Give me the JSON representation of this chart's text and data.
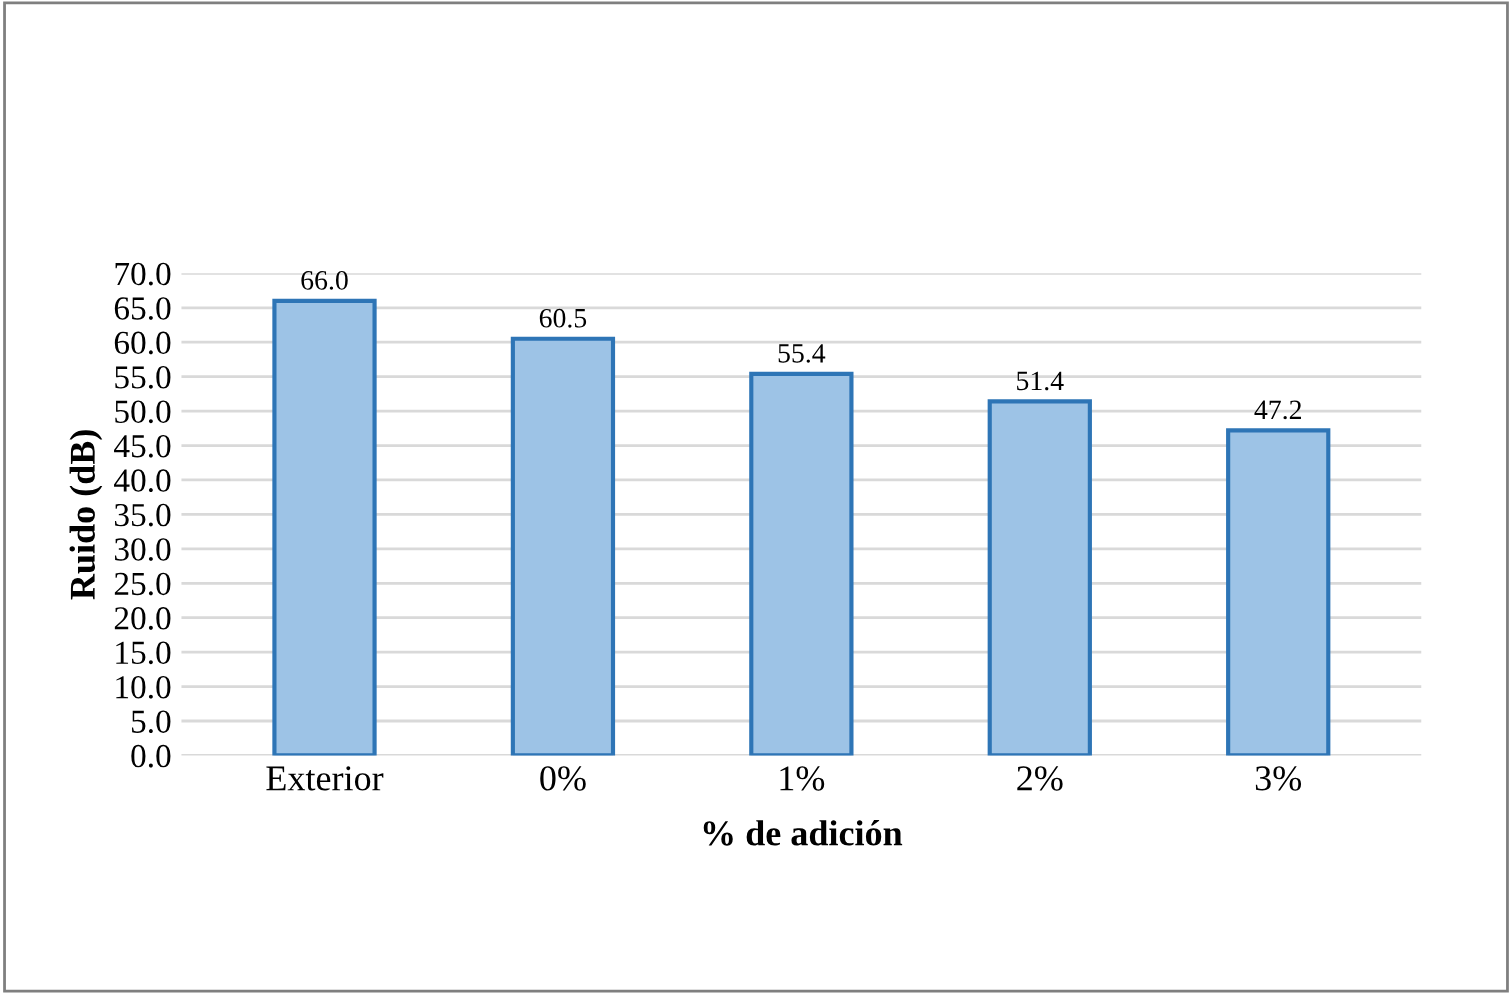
{
  "chart_data": {
    "type": "bar",
    "xlabel": "% de adición",
    "ylabel": "Ruido (dB)",
    "categories": [
      "Exterior",
      "0%",
      "1%",
      "2%",
      "3%"
    ],
    "values": [
      66.0,
      60.5,
      55.4,
      51.4,
      47.2
    ],
    "color": "#9dc3e6",
    "value_labels": [
      "66.0",
      "60.5",
      "55.4",
      "51.4",
      "47.2"
    ],
    "ylim": [
      0,
      70
    ],
    "yticks": [
      {
        "value": 0,
        "label": "0.0"
      },
      {
        "value": 5,
        "label": "5.0"
      },
      {
        "value": 10,
        "label": "10.0"
      },
      {
        "value": 15,
        "label": "15.0"
      },
      {
        "value": 20,
        "label": "20.0"
      },
      {
        "value": 25,
        "label": "25.0"
      },
      {
        "value": 30,
        "label": "30.0"
      },
      {
        "value": 35,
        "label": "35.0"
      },
      {
        "value": 40,
        "label": "40.0"
      },
      {
        "value": 45,
        "label": "45.0"
      },
      {
        "value": 50,
        "label": "50.0"
      },
      {
        "value": 55,
        "label": "55.0"
      },
      {
        "value": 60,
        "label": "60.0"
      },
      {
        "value": 65,
        "label": "65.0"
      },
      {
        "value": 70,
        "label": "70.0"
      }
    ],
    "grid": "y"
  }
}
